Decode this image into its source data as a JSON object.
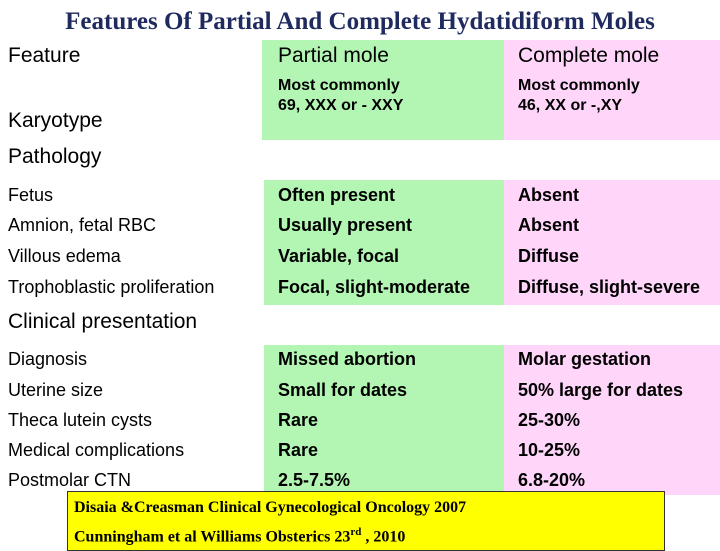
{
  "title": "Features Of Partial And Complete Hydatidiform Moles",
  "columns": {
    "feature": "Feature",
    "partial": "Partial mole",
    "complete": "Complete mole"
  },
  "karyotype": {
    "label": "Karyotype",
    "partial_line1": "Most commonly",
    "partial_line2": "69, XXX or - XXY",
    "complete_line1": "Most commonly",
    "complete_line2": "46, XX or -,XY"
  },
  "sections": {
    "pathology": "Pathology",
    "clinical": "Clinical presentation"
  },
  "pathology_rows": [
    {
      "feature": "Fetus",
      "partial": "Often present",
      "complete": "Absent"
    },
    {
      "feature": "Amnion, fetal RBC",
      "partial": "Usually present",
      "complete": "Absent"
    },
    {
      "feature": "Villous edema",
      "partial": "Variable, focal",
      "complete": "Diffuse"
    },
    {
      "feature": "Trophoblastic proliferation",
      "partial": "Focal, slight-moderate",
      "complete": "Diffuse, slight-severe"
    }
  ],
  "clinical_rows": [
    {
      "feature": "Diagnosis",
      "partial": "Missed abortion",
      "complete": "Molar gestation"
    },
    {
      "feature": "Uterine size",
      "partial": "Small for dates",
      "complete": "50% large for dates"
    },
    {
      "feature": "Theca lutein cysts",
      "partial": "Rare",
      "complete": "25-30%"
    },
    {
      "feature": "Medical complications",
      "partial": "Rare",
      "complete": "10-25%"
    },
    {
      "feature": "Postmolar CTN",
      "partial": "2.5-7.5%",
      "complete": "6.8-20%"
    }
  ],
  "citation": {
    "line1": "Disaia &Creasman Clinical Gynecological  Oncology 2007",
    "line2_pre": "Cunningham et al Williams Obsterics 23",
    "line2_sup": "rd",
    "line2_post": " , 2010"
  },
  "colors": {
    "partial_bg": "#b3f5b3",
    "complete_bg": "#ffd6fa",
    "citation_bg": "#ffff00",
    "title": "#1f2a5e"
  }
}
